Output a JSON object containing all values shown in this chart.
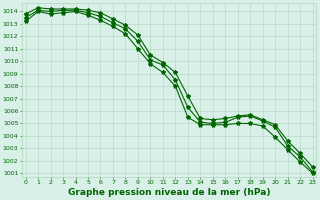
{
  "title": "Graphe pression niveau de la mer (hPa)",
  "yticks": [
    1001,
    1002,
    1003,
    1004,
    1005,
    1006,
    1007,
    1008,
    1009,
    1010,
    1011,
    1012,
    1013,
    1014
  ],
  "xticks": [
    0,
    1,
    2,
    3,
    4,
    5,
    6,
    7,
    8,
    9,
    10,
    11,
    12,
    13,
    14,
    15,
    16,
    17,
    18,
    19,
    20,
    21,
    22,
    23
  ],
  "line1": [
    1013.5,
    1014.1,
    1014.0,
    1014.1,
    1014.1,
    1013.9,
    1013.6,
    1013.1,
    1012.6,
    1011.6,
    1010.1,
    1009.7,
    1008.5,
    1006.3,
    1005.1,
    1005.0,
    1005.1,
    1005.5,
    1005.6,
    1005.2,
    1004.7,
    1003.2,
    1002.3,
    1001.1
  ],
  "line2": [
    1013.8,
    1014.3,
    1014.2,
    1014.2,
    1014.2,
    1014.1,
    1013.9,
    1013.4,
    1012.9,
    1012.1,
    1010.5,
    1009.9,
    1009.1,
    1007.2,
    1005.4,
    1005.3,
    1005.4,
    1005.6,
    1005.7,
    1005.3,
    1004.9,
    1003.6,
    1002.6,
    1001.5
  ],
  "line3": [
    1013.2,
    1014.0,
    1013.8,
    1013.9,
    1014.0,
    1013.7,
    1013.3,
    1012.8,
    1012.2,
    1011.0,
    1009.8,
    1009.1,
    1008.0,
    1005.5,
    1004.9,
    1004.9,
    1004.9,
    1005.0,
    1005.0,
    1004.8,
    1003.9,
    1002.9,
    1001.9,
    1001.0
  ],
  "line_color": "#006400",
  "bg_color": "#d8f0e8",
  "grid_color": "#b0d4be",
  "tick_label_color": "#006400",
  "title_color": "#006400",
  "marker": "*",
  "markersize": 3.0,
  "linewidth": 0.8,
  "title_fontsize": 6.5,
  "tick_fontsize": 4.5
}
